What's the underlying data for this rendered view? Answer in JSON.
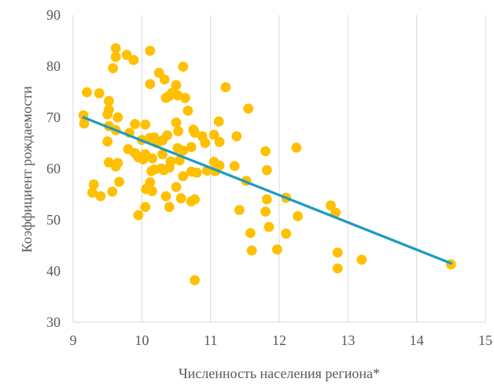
{
  "chart_data": {
    "type": "scatter",
    "title": "",
    "xlabel": "Численность населения региона*",
    "ylabel": "Коэффициент рождаемости",
    "xlim": [
      9,
      15
    ],
    "ylim": [
      30,
      90
    ],
    "x_ticks": [
      "9",
      "10",
      "11",
      "12",
      "13",
      "14",
      "15"
    ],
    "y_ticks": [
      "30",
      "40",
      "50",
      "60",
      "70",
      "80",
      "90"
    ],
    "grid": "vertical",
    "legend": "none",
    "colors": {
      "points": "#FFC000",
      "trendline": "#1B9BC2",
      "grid": "#D9D9D9",
      "text": "#595959"
    },
    "trendline": {
      "type": "linear",
      "x": [
        9.15,
        14.5
      ],
      "y": [
        70.0,
        41.5
      ]
    },
    "points": [
      [
        9.62,
        83.5
      ],
      [
        10.12,
        83.0
      ],
      [
        9.62,
        81.8
      ],
      [
        9.78,
        82.2
      ],
      [
        9.88,
        81.2
      ],
      [
        9.58,
        79.6
      ],
      [
        10.6,
        79.9
      ],
      [
        10.25,
        78.7
      ],
      [
        10.12,
        76.5
      ],
      [
        10.33,
        77.4
      ],
      [
        11.22,
        75.9
      ],
      [
        10.5,
        76.3
      ],
      [
        10.44,
        74.8
      ],
      [
        10.35,
        73.8
      ],
      [
        10.4,
        74.2
      ],
      [
        10.52,
        74.3
      ],
      [
        10.63,
        73.8
      ],
      [
        9.2,
        74.9
      ],
      [
        9.38,
        74.7
      ],
      [
        9.52,
        73.2
      ],
      [
        9.52,
        71.5
      ],
      [
        9.5,
        70.6
      ],
      [
        9.15,
        70.4
      ],
      [
        9.16,
        68.8
      ],
      [
        9.65,
        70.0
      ],
      [
        10.67,
        71.3
      ],
      [
        10.37,
        66.5
      ],
      [
        11.55,
        71.7
      ],
      [
        9.52,
        68.3
      ],
      [
        9.62,
        67.5
      ],
      [
        9.82,
        67.0
      ],
      [
        9.9,
        68.7
      ],
      [
        10.05,
        68.6
      ],
      [
        10.5,
        69.0
      ],
      [
        11.12,
        69.2
      ],
      [
        10.75,
        67.6
      ],
      [
        10.77,
        67.0
      ],
      [
        10.18,
        66.1
      ],
      [
        10.3,
        65.5
      ],
      [
        10.53,
        67.3
      ],
      [
        9.5,
        65.3
      ],
      [
        10.0,
        65.6
      ],
      [
        10.12,
        66.0
      ],
      [
        10.22,
        65.0
      ],
      [
        10.88,
        66.3
      ],
      [
        11.05,
        66.6
      ],
      [
        11.13,
        65.2
      ],
      [
        11.38,
        66.3
      ],
      [
        10.92,
        65.0
      ],
      [
        10.72,
        64.2
      ],
      [
        10.52,
        64.0
      ],
      [
        10.6,
        63.5
      ],
      [
        9.8,
        63.8
      ],
      [
        9.9,
        63.0
      ],
      [
        10.05,
        62.8
      ],
      [
        10.3,
        62.8
      ],
      [
        10.15,
        62.0
      ],
      [
        9.95,
        62.2
      ],
      [
        10.02,
        61.8
      ],
      [
        9.52,
        61.2
      ],
      [
        9.65,
        61.1
      ],
      [
        9.62,
        60.4
      ],
      [
        10.42,
        61.4
      ],
      [
        10.55,
        61.6
      ],
      [
        10.4,
        60.2
      ],
      [
        10.28,
        60.0
      ],
      [
        10.18,
        59.8
      ],
      [
        10.14,
        59.5
      ],
      [
        10.32,
        59.7
      ],
      [
        10.72,
        59.4
      ],
      [
        10.8,
        59.2
      ],
      [
        10.95,
        59.6
      ],
      [
        11.05,
        61.3
      ],
      [
        11.13,
        60.6
      ],
      [
        11.07,
        59.5
      ],
      [
        11.35,
        60.5
      ],
      [
        11.8,
        63.4
      ],
      [
        11.82,
        59.7
      ],
      [
        12.25,
        64.1
      ],
      [
        9.67,
        57.4
      ],
      [
        9.3,
        56.9
      ],
      [
        9.28,
        55.3
      ],
      [
        9.4,
        54.6
      ],
      [
        9.57,
        55.5
      ],
      [
        10.06,
        56.0
      ],
      [
        10.15,
        55.6
      ],
      [
        10.12,
        57.3
      ],
      [
        10.5,
        56.4
      ],
      [
        10.6,
        58.5
      ],
      [
        10.57,
        54.2
      ],
      [
        10.35,
        54.6
      ],
      [
        10.4,
        52.5
      ],
      [
        10.05,
        52.5
      ],
      [
        9.95,
        50.9
      ],
      [
        10.72,
        53.6
      ],
      [
        10.77,
        54.0
      ],
      [
        11.52,
        57.6
      ],
      [
        11.42,
        51.9
      ],
      [
        11.8,
        51.6
      ],
      [
        11.82,
        54.0
      ],
      [
        12.1,
        54.3
      ],
      [
        12.27,
        50.7
      ],
      [
        12.75,
        52.8
      ],
      [
        12.82,
        51.4
      ],
      [
        11.58,
        47.4
      ],
      [
        11.6,
        44.0
      ],
      [
        11.85,
        48.6
      ],
      [
        11.97,
        44.2
      ],
      [
        12.1,
        47.3
      ],
      [
        12.85,
        43.6
      ],
      [
        12.85,
        40.5
      ],
      [
        13.2,
        42.2
      ],
      [
        14.5,
        41.3
      ],
      [
        10.77,
        38.2
      ]
    ]
  }
}
